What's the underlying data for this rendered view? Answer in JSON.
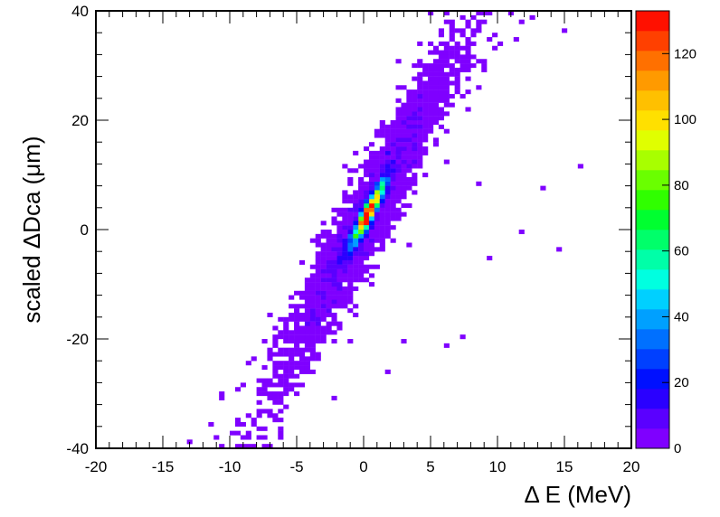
{
  "chart_data": {
    "type": "heatmap",
    "title": "",
    "xlabel": "Δ E (MeV)",
    "ylabel": "scaled ΔDca (μm)",
    "xlim": [
      -20,
      20
    ],
    "ylim": [
      -40,
      40
    ],
    "x_ticks": [
      "-20",
      "-15",
      "-10",
      "-5",
      "0",
      "5",
      "10",
      "15",
      "20"
    ],
    "y_ticks": [
      "-40",
      "-20",
      "0",
      "20",
      "40"
    ],
    "colorbar": {
      "range": [
        0,
        133
      ],
      "ticks": [
        "0",
        "20",
        "40",
        "60",
        "80",
        "100",
        "120"
      ],
      "colors": [
        "#7F00FF",
        "#5A00FF",
        "#2A00FF",
        "#0010FF",
        "#0040FF",
        "#0070FF",
        "#00A0FF",
        "#00D0FF",
        "#00FFE0",
        "#00FFA8",
        "#00FF6A",
        "#00FF30",
        "#30FF00",
        "#6AFF00",
        "#A8FF00",
        "#E0FF00",
        "#FFE000",
        "#FFC000",
        "#FF9A00",
        "#FF7000",
        "#FF4000",
        "#FF1000"
      ]
    },
    "distribution": {
      "relation": "correlated, y ≈ 4.4 · x + 1.5",
      "peak": {
        "x": 0.3,
        "y": 1.5,
        "count": 133
      },
      "x_extent": [
        -14,
        13
      ],
      "y_extent": [
        -40,
        40
      ]
    },
    "outliers": [
      [
        16.3,
        11.8
      ],
      [
        14.6,
        -3.5
      ],
      [
        9.4,
        -5.0
      ],
      [
        13.3,
        7.8
      ],
      [
        11.7,
        -0.4
      ],
      [
        8.6,
        8.6
      ],
      [
        3.3,
        -3.0
      ],
      [
        2.8,
        -20.3
      ],
      [
        6.0,
        -20.8
      ],
      [
        7.4,
        -20.0
      ],
      [
        -1.2,
        -20.1
      ],
      [
        1.8,
        -25.6
      ],
      [
        -2.3,
        -30.8
      ],
      [
        11.9,
        38.0
      ],
      [
        14.9,
        36.0
      ],
      [
        12.8,
        38.7
      ],
      [
        2.9,
        6.0
      ]
    ]
  }
}
